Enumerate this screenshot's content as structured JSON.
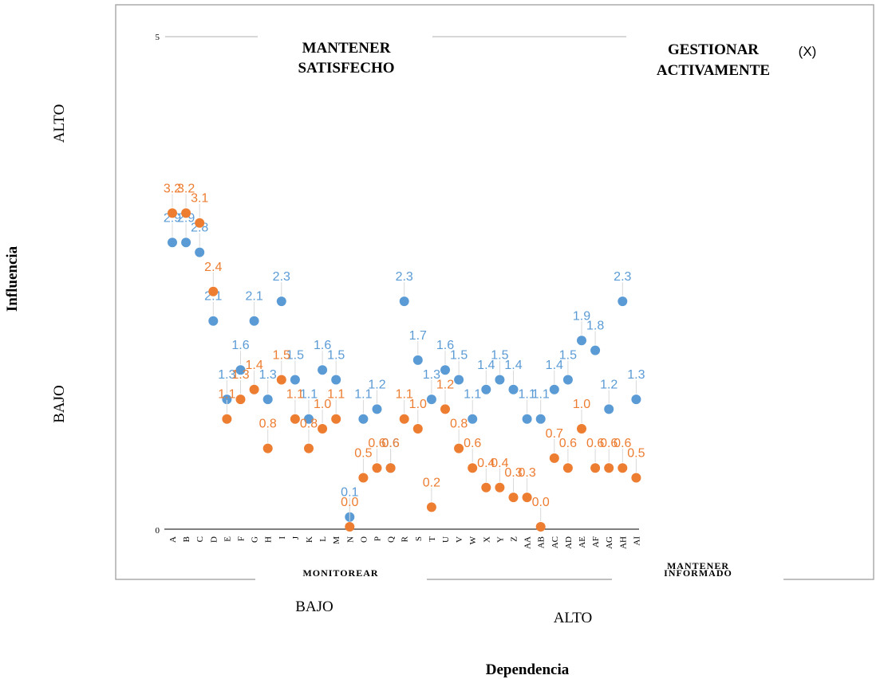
{
  "chart_data": {
    "type": "scatter",
    "title": "",
    "xlabel": "Dependencia",
    "ylabel": "Influencia",
    "ylim": [
      0,
      5
    ],
    "yticks": [
      "0",
      "5"
    ],
    "grid": false,
    "categories": [
      "A",
      "B",
      "C",
      "D",
      "E",
      "F",
      "G",
      "H",
      "I",
      "J",
      "K",
      "L",
      "M",
      "N",
      "O",
      "P",
      "Q",
      "R",
      "S",
      "T",
      "U",
      "V",
      "W",
      "X",
      "Y",
      "Z",
      "AA",
      "AB",
      "AC",
      "AD",
      "AE",
      "AF",
      "AG",
      "AH",
      "AI"
    ],
    "series": [
      {
        "color": "#5b9bd5",
        "values": [
          2.9,
          2.9,
          2.8,
          2.1,
          1.3,
          1.6,
          2.1,
          1.3,
          2.3,
          1.5,
          1.1,
          1.6,
          1.5,
          0.1,
          1.1,
          1.2,
          0.6,
          2.3,
          1.7,
          1.3,
          1.6,
          1.5,
          1.1,
          1.4,
          1.5,
          1.4,
          1.1,
          1.1,
          1.4,
          1.5,
          1.9,
          1.8,
          1.2,
          2.3,
          1.3
        ]
      },
      {
        "color": "#ed7d31",
        "values": [
          3.2,
          3.2,
          3.1,
          2.4,
          1.1,
          1.3,
          1.4,
          0.8,
          1.5,
          1.1,
          0.8,
          1.0,
          1.1,
          0.0,
          0.5,
          0.6,
          0.6,
          1.1,
          1.0,
          0.2,
          1.2,
          0.8,
          0.6,
          0.4,
          0.4,
          0.3,
          0.3,
          0.0,
          0.7,
          0.6,
          1.0,
          0.6,
          0.6,
          0.6,
          0.5
        ]
      }
    ],
    "quadrants": {
      "top_left": "MANTENER SATISFECHO",
      "top_right": "GESTIONAR ACTIVAMENTE",
      "bottom_left": "MONITOREAR",
      "bottom_right": "MANTENER INFORMADO"
    },
    "y_side_labels": {
      "high": "ALTO",
      "low": "BAJO"
    },
    "x_side_labels": {
      "low": "BAJO",
      "high": "ALTO"
    },
    "annotation": "(X)"
  }
}
